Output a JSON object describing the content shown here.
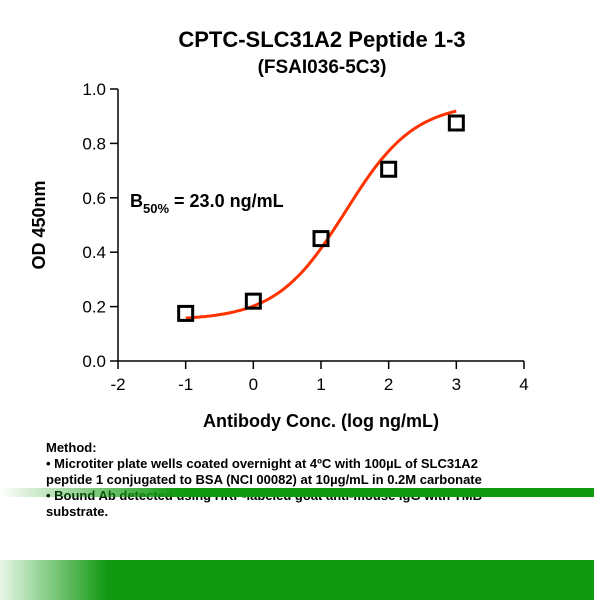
{
  "chart_data": {
    "type": "scatter",
    "title": "CPTC-SLC31A2 Peptide 1-3",
    "subtitle": "(FSAI036-5C3)",
    "xlabel": "Antibody Conc. (log ng/mL)",
    "ylabel": "OD 450nm",
    "xlim": [
      -2,
      4
    ],
    "ylim": [
      0,
      1.0
    ],
    "x_ticks": [
      "-2",
      "-1",
      "0",
      "1",
      "2",
      "3",
      "4"
    ],
    "y_ticks": [
      "0.0",
      "0.2",
      "0.4",
      "0.6",
      "0.8",
      "1.0"
    ],
    "x": [
      -1,
      0,
      1,
      2,
      3
    ],
    "y": [
      0.175,
      0.22,
      0.45,
      0.705,
      0.875
    ],
    "fit": {
      "bottom": 0.15,
      "top": 0.95,
      "logEC50": 1.362,
      "hill": 0.85
    },
    "annotation": {
      "prefix": "B",
      "subscript": "50%",
      "value": " = 23.0 ng/mL"
    },
    "colors": {
      "curve": "#ff3300",
      "marker": "#000000"
    }
  },
  "method": {
    "heading": "Method:",
    "lines": [
      "• Microtiter plate wells coated overnight at 4ºC  with 100µL of SLC31A2",
      "peptide 1 conjugated to BSA (NCI 00082) at 10µg/mL in 0.2M carbonate",
      "• Bound Ab detected using HRP-labeled goat anti-mouse IgG with TMB",
      "substrate."
    ]
  },
  "colors": {
    "band_green": "#119911"
  }
}
